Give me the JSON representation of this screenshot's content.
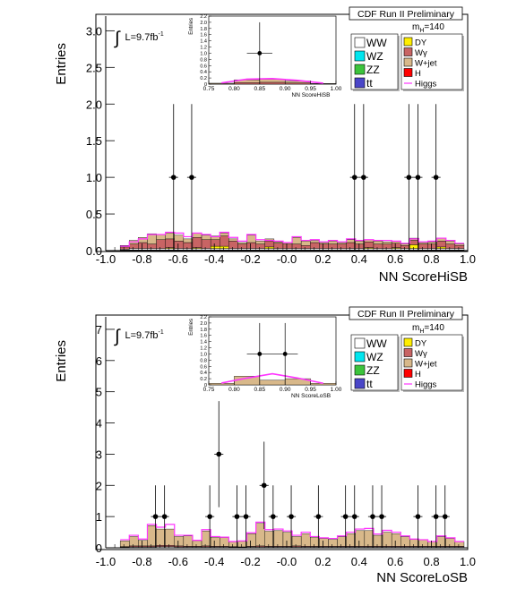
{
  "colors": {
    "WW": "#ffffff",
    "WZ": "#00e5ee",
    "ZZ": "#3cc43c",
    "ttbar": "#4a46c8",
    "DY": "#ffee00",
    "Wgamma": "#c86464",
    "Wjet": "#d8b88a",
    "H": "#ff0000",
    "Higgs": "#ff33ff",
    "data": "#000000"
  },
  "chart_data": [
    {
      "type": "bar",
      "ylabel": "Entries",
      "xlabel": "NN ScoreHiSB",
      "header": "CDF Run II Preliminary",
      "lumi": "L=9.7fb",
      "lumi_sup": "-1",
      "integral_symbol": "∫",
      "mass_label": "m",
      "mass_sub": "H",
      "mass_value": "=140",
      "xlim": [
        -1.0,
        1.0
      ],
      "ylim": [
        0,
        3.2
      ],
      "xticks": [
        "-1.0",
        "-0.8",
        "-0.6",
        "-0.4",
        "-0.2",
        "-0.0",
        "0.2",
        "0.4",
        "0.6",
        "0.8",
        "1.0"
      ],
      "yticks": [
        "0.0",
        "0.5",
        "1.0",
        "1.5",
        "2.0",
        "2.5",
        "3.0"
      ],
      "yticks_values": [
        0,
        0.5,
        1.0,
        1.5,
        2.0,
        2.5,
        3.0
      ],
      "legend_left": [
        "WW",
        "WZ",
        "ZZ",
        "tt"
      ],
      "legend_right": [
        "DY",
        "Wγ",
        "W+jet",
        "H",
        "Higgs"
      ],
      "stack_order": [
        "ttbar",
        "ZZ",
        "WZ",
        "WW",
        "DY",
        "Wgamma",
        "Wjet"
      ],
      "bin_edges_start": -0.92,
      "bin_width": 0.05,
      "stack": {
        "ttbar": [
          0.01,
          0.01,
          0.01,
          0.01,
          0.01,
          0.01,
          0.01,
          0.01,
          0.01,
          0.01,
          0.01,
          0.01,
          0.01,
          0.01,
          0.01,
          0.01,
          0.01,
          0.01,
          0.01,
          0.01,
          0.01,
          0.01,
          0.01,
          0.01,
          0.01,
          0.01,
          0.01,
          0.01,
          0.01,
          0.01,
          0.01,
          0.01,
          0.01,
          0.01,
          0.01,
          0.01,
          0.01,
          0.01
        ],
        "ZZ": [
          0.0,
          0.0,
          0.0,
          0.0,
          0.0,
          0.0,
          0.0,
          0.0,
          0.0,
          0.0,
          0.0,
          0.0,
          0.0,
          0.0,
          0.0,
          0.0,
          0.0,
          0.0,
          0.0,
          0.0,
          0.0,
          0.0,
          0.0,
          0.0,
          0.0,
          0.0,
          0.0,
          0.0,
          0.0,
          0.0,
          0.0,
          0.0,
          0.0,
          0.0,
          0.0,
          0.0,
          0.0,
          0.0
        ],
        "WZ": [
          0.0,
          0.0,
          0.0,
          0.0,
          0.0,
          0.0,
          0.0,
          0.0,
          0.0,
          0.0,
          0.0,
          0.0,
          0.0,
          0.0,
          0.0,
          0.0,
          0.0,
          0.0,
          0.0,
          0.0,
          0.0,
          0.0,
          0.0,
          0.0,
          0.0,
          0.0,
          0.0,
          0.0,
          0.0,
          0.0,
          0.0,
          0.0,
          0.0,
          0.0,
          0.0,
          0.0,
          0.0,
          0.0
        ],
        "WW": [
          0.01,
          0.02,
          0.02,
          0.02,
          0.02,
          0.02,
          0.02,
          0.02,
          0.02,
          0.02,
          0.02,
          0.02,
          0.02,
          0.02,
          0.02,
          0.02,
          0.02,
          0.02,
          0.02,
          0.02,
          0.02,
          0.02,
          0.02,
          0.02,
          0.02,
          0.02,
          0.02,
          0.02,
          0.02,
          0.02,
          0.02,
          0.02,
          0.02,
          0.02,
          0.02,
          0.02,
          0.02,
          0.02
        ],
        "DY": [
          0.0,
          0.0,
          0.0,
          0.0,
          0.0,
          0.01,
          0.0,
          0.0,
          0.01,
          0.0,
          0.03,
          0.03,
          0.0,
          0.0,
          0.0,
          0.0,
          0.02,
          0.0,
          0.0,
          0.0,
          0.0,
          0.0,
          0.0,
          0.0,
          0.0,
          0.0,
          0.0,
          0.01,
          0.0,
          0.0,
          0.01,
          0.0,
          0.05,
          0.0,
          0.0,
          0.02,
          0.0,
          0.0
        ],
        "Wgamma": [
          0.03,
          0.06,
          0.08,
          0.06,
          0.12,
          0.12,
          0.1,
          0.08,
          0.14,
          0.12,
          0.09,
          0.14,
          0.1,
          0.06,
          0.08,
          0.06,
          0.08,
          0.07,
          0.06,
          0.06,
          0.04,
          0.08,
          0.06,
          0.06,
          0.06,
          0.08,
          0.06,
          0.08,
          0.06,
          0.06,
          0.06,
          0.04,
          0.06,
          0.06,
          0.06,
          0.08,
          0.06,
          0.04
        ],
        "Wjet": [
          0.02,
          0.05,
          0.07,
          0.14,
          0.07,
          0.08,
          0.08,
          0.05,
          0.06,
          0.06,
          0.05,
          0.04,
          0.03,
          0.02,
          0.1,
          0.04,
          0.03,
          0.02,
          0.02,
          0.09,
          0.06,
          0.03,
          0.02,
          0.04,
          0.02,
          0.04,
          0.04,
          0.03,
          0.04,
          0.03,
          0.03,
          0.02,
          0.03,
          0.02,
          0.03,
          0.04,
          0.04,
          0.02
        ]
      },
      "higgs_curve": [
        0.06,
        0.12,
        0.16,
        0.22,
        0.22,
        0.25,
        0.24,
        0.19,
        0.24,
        0.22,
        0.19,
        0.25,
        0.18,
        0.13,
        0.22,
        0.15,
        0.14,
        0.13,
        0.11,
        0.19,
        0.14,
        0.15,
        0.12,
        0.14,
        0.12,
        0.16,
        0.14,
        0.15,
        0.14,
        0.14,
        0.13,
        0.1,
        0.16,
        0.12,
        0.13,
        0.17,
        0.14,
        0.1
      ],
      "data_points": [
        {
          "x": -0.625,
          "y": 1,
          "err": 1.0
        },
        {
          "x": -0.525,
          "y": 1,
          "err": 1.0
        },
        {
          "x": 0.375,
          "y": 1,
          "err": 1.0
        },
        {
          "x": 0.425,
          "y": 1,
          "err": 1.0
        },
        {
          "x": 0.675,
          "y": 1,
          "err": 1.0
        },
        {
          "x": 0.725,
          "y": 1,
          "err": 1.0
        },
        {
          "x": 0.825,
          "y": 1,
          "err": 1.0
        }
      ],
      "inset": {
        "xlabel": "NN ScoreHiSB",
        "ylabel": "Entries",
        "xlim": [
          0.75,
          1.0
        ],
        "ylim": [
          0,
          2.2
        ],
        "xticks": [
          "0.75",
          "0.80",
          "0.85",
          "0.90",
          "0.95",
          "1.00"
        ],
        "yticks": [
          "0",
          "0.2",
          "0.4",
          "0.6",
          "0.8",
          "1.0",
          "1.2",
          "1.4",
          "1.6",
          "1.8",
          "2.0",
          "2.2"
        ],
        "bins": [
          0.775,
          0.825,
          0.875,
          0.925,
          0.975
        ],
        "wjet": [
          0.02,
          0.09,
          0.1,
          0.06,
          0.01
        ],
        "wgamma": [
          0.01,
          0.05,
          0.06,
          0.04,
          0.01
        ],
        "higgs": [
          0.04,
          0.16,
          0.18,
          0.12,
          0.03
        ],
        "data_points": [
          {
            "x": 0.85,
            "y": 1,
            "err": 1.0
          }
        ]
      }
    },
    {
      "type": "bar",
      "ylabel": "Entries",
      "xlabel": "NN ScoreLoSB",
      "header": "CDF Run II Preliminary",
      "lumi": "L=9.7fb",
      "lumi_sup": "-1",
      "integral_symbol": "∫",
      "mass_label": "m",
      "mass_sub": "H",
      "mass_value": "=140",
      "xlim": [
        -1.0,
        1.0
      ],
      "ylim": [
        0,
        7.4
      ],
      "xticks": [
        "-1.0",
        "-0.8",
        "-0.6",
        "-0.4",
        "-0.2",
        "-0.0",
        "0.2",
        "0.4",
        "0.6",
        "0.8",
        "1.0"
      ],
      "yticks": [
        "0",
        "1",
        "2",
        "3",
        "4",
        "5",
        "6",
        "7"
      ],
      "yticks_values": [
        0,
        1,
        2,
        3,
        4,
        5,
        6,
        7
      ],
      "legend_left": [
        "WW",
        "WZ",
        "ZZ",
        "tt"
      ],
      "legend_right": [
        "DY",
        "Wγ",
        "W+jet",
        "H",
        "Higgs"
      ],
      "stack_order": [
        "ttbar",
        "ZZ",
        "WZ",
        "WW",
        "DY",
        "Wgamma",
        "Wjet"
      ],
      "bin_edges_start": -0.92,
      "bin_width": 0.05,
      "stack": {
        "ttbar": [
          0.0,
          0.0,
          0.0,
          0.0,
          0.0,
          0.0,
          0.0,
          0.0,
          0.0,
          0.0,
          0.0,
          0.0,
          0.0,
          0.0,
          0.0,
          0.0,
          0.0,
          0.0,
          0.0,
          0.0,
          0.0,
          0.0,
          0.0,
          0.0,
          0.0,
          0.0,
          0.0,
          0.0,
          0.0,
          0.0,
          0.0,
          0.0,
          0.0,
          0.0,
          0.0,
          0.0,
          0.0,
          0.0
        ],
        "ZZ": [
          0.0,
          0.0,
          0.0,
          0.0,
          0.0,
          0.0,
          0.0,
          0.0,
          0.0,
          0.0,
          0.0,
          0.0,
          0.0,
          0.0,
          0.0,
          0.0,
          0.0,
          0.0,
          0.0,
          0.0,
          0.0,
          0.0,
          0.0,
          0.0,
          0.0,
          0.0,
          0.0,
          0.0,
          0.0,
          0.0,
          0.0,
          0.0,
          0.0,
          0.0,
          0.0,
          0.0,
          0.0,
          0.0
        ],
        "WZ": [
          0.0,
          0.0,
          0.0,
          0.0,
          0.0,
          0.0,
          0.0,
          0.0,
          0.0,
          0.0,
          0.0,
          0.0,
          0.0,
          0.0,
          0.0,
          0.0,
          0.0,
          0.0,
          0.0,
          0.0,
          0.0,
          0.0,
          0.0,
          0.0,
          0.0,
          0.0,
          0.0,
          0.0,
          0.0,
          0.0,
          0.0,
          0.0,
          0.0,
          0.0,
          0.0,
          0.0,
          0.0,
          0.0
        ],
        "WW": [
          0.02,
          0.03,
          0.03,
          0.03,
          0.04,
          0.04,
          0.03,
          0.03,
          0.03,
          0.03,
          0.03,
          0.03,
          0.02,
          0.02,
          0.03,
          0.03,
          0.03,
          0.03,
          0.03,
          0.03,
          0.03,
          0.03,
          0.03,
          0.03,
          0.03,
          0.03,
          0.03,
          0.03,
          0.03,
          0.03,
          0.03,
          0.03,
          0.03,
          0.03,
          0.03,
          0.03,
          0.03,
          0.03
        ],
        "DY": [
          0.0,
          0.0,
          0.0,
          0.0,
          0.0,
          0.0,
          0.0,
          0.0,
          0.0,
          0.0,
          0.0,
          0.0,
          0.0,
          0.0,
          0.0,
          0.0,
          0.0,
          0.0,
          0.0,
          0.0,
          0.0,
          0.0,
          0.0,
          0.0,
          0.0,
          0.0,
          0.0,
          0.0,
          0.0,
          0.0,
          0.0,
          0.0,
          0.0,
          0.0,
          0.0,
          0.0,
          0.0,
          0.0
        ],
        "Wgamma": [
          0.02,
          0.03,
          0.03,
          0.03,
          0.04,
          0.04,
          0.03,
          0.02,
          0.02,
          0.03,
          0.02,
          0.02,
          0.02,
          0.01,
          0.02,
          0.03,
          0.02,
          0.02,
          0.02,
          0.03,
          0.02,
          0.02,
          0.02,
          0.02,
          0.02,
          0.02,
          0.02,
          0.02,
          0.02,
          0.02,
          0.02,
          0.02,
          0.02,
          0.02,
          0.02,
          0.02,
          0.02,
          0.02
        ],
        "Wjet": [
          0.18,
          0.3,
          0.18,
          0.65,
          0.52,
          0.52,
          0.3,
          0.33,
          0.18,
          0.48,
          0.28,
          0.28,
          0.15,
          0.18,
          0.4,
          0.72,
          0.48,
          0.5,
          0.45,
          0.3,
          0.4,
          0.28,
          0.25,
          0.22,
          0.3,
          0.4,
          0.5,
          0.5,
          0.35,
          0.45,
          0.4,
          0.3,
          0.22,
          0.2,
          0.15,
          0.3,
          0.25,
          0.15
        ]
      },
      "higgs_curve": [
        0.26,
        0.4,
        0.28,
        0.75,
        0.66,
        0.75,
        0.4,
        0.4,
        0.24,
        0.58,
        0.36,
        0.34,
        0.2,
        0.22,
        0.48,
        0.82,
        0.58,
        0.6,
        0.54,
        0.4,
        0.5,
        0.36,
        0.32,
        0.3,
        0.38,
        0.5,
        0.6,
        0.62,
        0.44,
        0.56,
        0.5,
        0.38,
        0.28,
        0.26,
        0.2,
        0.38,
        0.32,
        0.2
      ],
      "data_points": [
        {
          "x": -0.725,
          "y": 1,
          "err": 1.0
        },
        {
          "x": -0.675,
          "y": 1,
          "err": 1.0
        },
        {
          "x": -0.425,
          "y": 1,
          "err": 1.0
        },
        {
          "x": -0.375,
          "y": 3,
          "err": 1.7
        },
        {
          "x": -0.275,
          "y": 1,
          "err": 1.0
        },
        {
          "x": -0.225,
          "y": 1,
          "err": 1.0
        },
        {
          "x": -0.125,
          "y": 2,
          "err": 1.4
        },
        {
          "x": -0.075,
          "y": 1,
          "err": 1.0
        },
        {
          "x": 0.025,
          "y": 1,
          "err": 1.0
        },
        {
          "x": 0.175,
          "y": 1,
          "err": 1.0
        },
        {
          "x": 0.325,
          "y": 1,
          "err": 1.0
        },
        {
          "x": 0.375,
          "y": 1,
          "err": 1.0
        },
        {
          "x": 0.475,
          "y": 1,
          "err": 1.0
        },
        {
          "x": 0.525,
          "y": 1,
          "err": 1.0
        },
        {
          "x": 0.725,
          "y": 1,
          "err": 1.0
        },
        {
          "x": 0.825,
          "y": 1,
          "err": 1.0
        },
        {
          "x": 0.875,
          "y": 1,
          "err": 1.0
        }
      ],
      "inset": {
        "xlabel": "NN ScoreLoSB",
        "ylabel": "Entries",
        "xlim": [
          0.75,
          1.0
        ],
        "ylim": [
          0,
          2.2
        ],
        "xticks": [
          "0.75",
          "0.80",
          "0.85",
          "0.90",
          "0.95",
          "1.00"
        ],
        "yticks": [
          "0",
          "0.2",
          "0.4",
          "0.6",
          "0.8",
          "1.0",
          "1.2",
          "1.4",
          "1.6",
          "1.8",
          "2.0",
          "2.2"
        ],
        "bins": [
          0.775,
          0.825,
          0.875,
          0.925,
          0.975
        ],
        "wjet": [
          0.05,
          0.28,
          0.15,
          0.2,
          0.05
        ],
        "wgamma": [
          0.0,
          0.0,
          0.0,
          0.0,
          0.0
        ],
        "higgs": [
          0.06,
          0.22,
          0.36,
          0.22,
          0.05
        ],
        "data_points": [
          {
            "x": 0.85,
            "y": 1,
            "err": 1.0
          },
          {
            "x": 0.9,
            "y": 1,
            "err": 1.0
          }
        ]
      }
    }
  ]
}
